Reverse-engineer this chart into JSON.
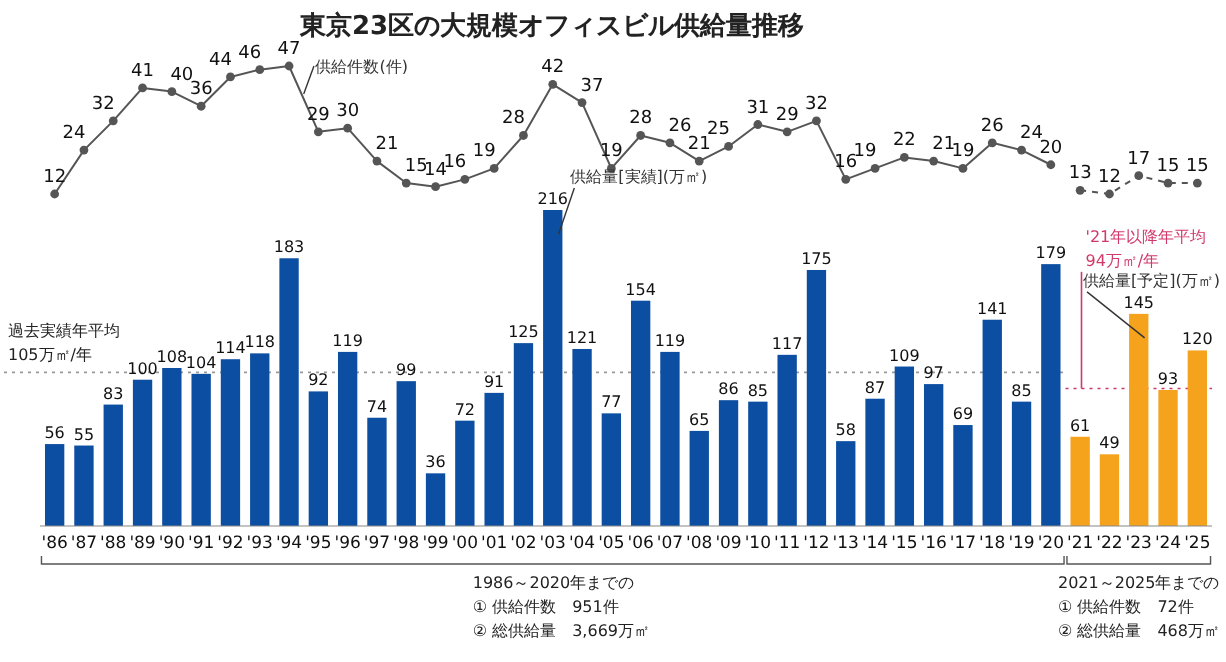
{
  "chart_data": [
    {
      "type": "line",
      "title": "東京23区の大規模オフィスビル供給量推移",
      "categories": [
        null,
        null,
        null,
        null,
        null,
        null,
        null,
        null,
        null,
        null,
        null,
        null,
        null,
        null,
        null,
        null,
        null,
        null,
        null,
        null,
        null,
        null,
        null,
        null,
        null,
        null,
        null,
        null,
        null,
        null,
        null,
        null,
        null,
        null,
        null,
        null,
        null,
        null,
        null,
        null
      ],
      "series": [
        {
          "name": "供給件数(件)",
          "color": "#555555",
          "line_style": "solid",
          "values": [
            12,
            24,
            32,
            41,
            40,
            36,
            44,
            46,
            47,
            29,
            30,
            21,
            15,
            14,
            16,
            19,
            28,
            42,
            37,
            19,
            28,
            26,
            21,
            25,
            31,
            29,
            32,
            16,
            19,
            22,
            21,
            19,
            26,
            24,
            20,
            null,
            null,
            null,
            null,
            null
          ]
        },
        {
          "color": "#555555",
          "line_style": "dashed",
          "values": [
            null,
            null,
            null,
            null,
            null,
            null,
            null,
            null,
            null,
            null,
            null,
            null,
            null,
            null,
            null,
            null,
            null,
            null,
            null,
            null,
            null,
            null,
            null,
            null,
            null,
            null,
            null,
            null,
            null,
            null,
            null,
            null,
            null,
            null,
            null,
            13,
            12,
            17,
            15,
            15
          ]
        }
      ],
      "tick_labels": false,
      "data_labels": true,
      "marker": "circle"
    },
    {
      "type": "bar",
      "categories": [
        "'86",
        "'87",
        "'88",
        "'89",
        "'90",
        "'91",
        "'92",
        "'93",
        "'94",
        "'95",
        "'96",
        "'97",
        "'98",
        "'99",
        "'00",
        "'01",
        "'02",
        "'03",
        "'04",
        "'05",
        "'06",
        "'07",
        "'08",
        "'09",
        "'10",
        "'11",
        "'12",
        "'13",
        "'14",
        "'15",
        "'16",
        "'17",
        "'18",
        "'19",
        "'20",
        "'21",
        "'22",
        "'23",
        "'24",
        "'25"
      ],
      "series": [
        {
          "name": "供給量[実績](万㎡)",
          "color": "#0b4ea2",
          "values": [
            56,
            55,
            83,
            100,
            108,
            104,
            114,
            118,
            183,
            92,
            119,
            74,
            99,
            36,
            72,
            91,
            125,
            216,
            121,
            77,
            154,
            119,
            65,
            86,
            85,
            117,
            175,
            58,
            87,
            109,
            97,
            69,
            141,
            85,
            179,
            null,
            null,
            null,
            null,
            null
          ]
        },
        {
          "name": "供給量[予定](万㎡)",
          "color": "#f5a21c",
          "values": [
            null,
            null,
            null,
            null,
            null,
            null,
            null,
            null,
            null,
            null,
            null,
            null,
            null,
            null,
            null,
            null,
            null,
            null,
            null,
            null,
            null,
            null,
            null,
            null,
            null,
            null,
            null,
            null,
            null,
            null,
            null,
            null,
            null,
            null,
            null,
            61,
            49,
            145,
            93,
            120
          ]
        }
      ],
      "ylim": [
        0,
        216
      ],
      "tick_labels": "x",
      "data_labels": true,
      "ref_lines": [
        {
          "axis": "y",
          "value": 105,
          "label": "過去実績年平均\n105万㎡/年",
          "color": "#999999",
          "line_style": "dotted"
        },
        {
          "axis": "y",
          "value": 94,
          "label": "'21年以降年平均\n94万㎡/年",
          "color": "#d0386a",
          "line_style": "dotted"
        }
      ],
      "annotations": [
        "1986～2020年までの\n① 供給件数　951件\n② 総供給量　3,669万㎡",
        "2021～2025年までの\n① 供給件数　72件\n② 総供給量　468万㎡"
      ]
    }
  ]
}
